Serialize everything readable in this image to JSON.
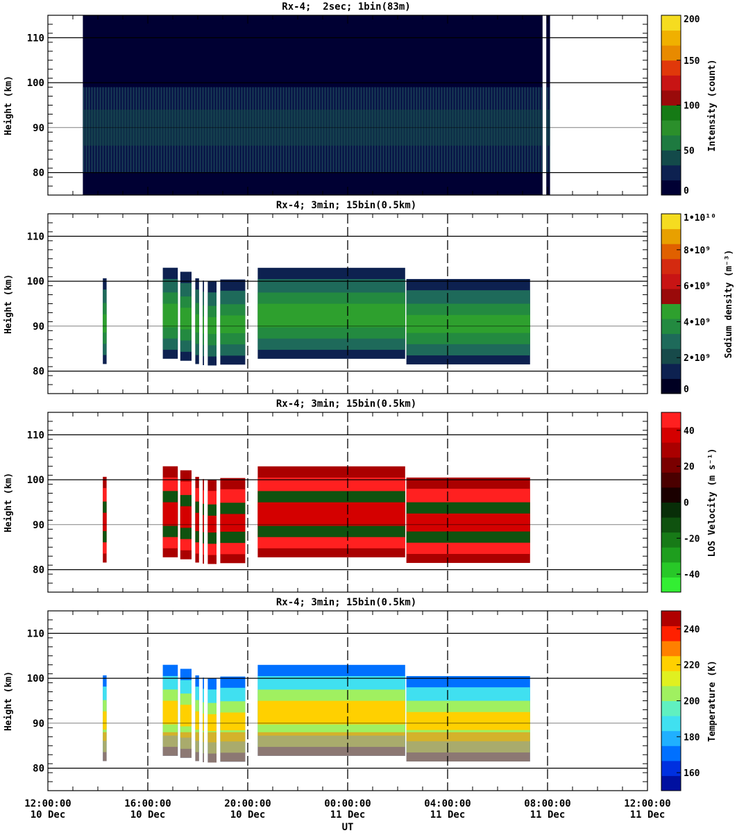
{
  "figure": {
    "x_axis_label": "UT",
    "x_tick_labels": [
      {
        "time": "12:00:00",
        "date": "10 Dec"
      },
      {
        "time": "16:00:00",
        "date": "10 Dec"
      },
      {
        "time": "20:00:00",
        "date": "10 Dec"
      },
      {
        "time": "00:00:00",
        "date": "11 Dec"
      },
      {
        "time": "04:00:00",
        "date": "11 Dec"
      },
      {
        "time": "08:00:00",
        "date": "11 Dec"
      },
      {
        "time": "12:00:00",
        "date": "11 Dec"
      }
    ]
  },
  "chart_data": [
    {
      "type": "heatmap",
      "title": "Rx-4;  2sec; 1bin(83m)",
      "ylabel": "Height (km)",
      "xlabel": "UT",
      "x_range_hours": [
        0,
        24
      ],
      "ylim": [
        75,
        115
      ],
      "y_ticks": [
        80,
        90,
        100,
        110
      ],
      "colorbar": {
        "label": "Intensity (count)",
        "range": [
          0,
          200
        ],
        "tick_labels": [
          "0",
          "50",
          "100",
          "150",
          "200"
        ],
        "tick_values": [
          0,
          50,
          100,
          150,
          200
        ],
        "colors": [
          "#000033",
          "#0d2150",
          "#134a4a",
          "#1e7a40",
          "#2b8f2b",
          "#157a15",
          "#9a0a0a",
          "#c81414",
          "#e0380a",
          "#e88a00",
          "#f0b000",
          "#f5dc20"
        ]
      },
      "data_coverage_hours": [
        [
          1.4,
          19.8
        ],
        [
          19.95,
          20.1
        ]
      ],
      "layer_peak_km": 90
    },
    {
      "type": "heatmap",
      "title": "Rx-4; 3min; 15bin(0.5km)",
      "ylabel": "Height (km)",
      "xlabel": "UT",
      "x_range_hours": [
        0,
        24
      ],
      "ylim": [
        75,
        115
      ],
      "y_ticks": [
        80,
        90,
        100,
        110
      ],
      "colorbar": {
        "label": "Sodium density (m⁻³)",
        "range": [
          0,
          10000000000
        ],
        "tick_labels": [
          "0",
          "2•10⁹",
          "4•10⁹",
          "6•10⁹",
          "8•10⁹",
          "1•10¹⁰"
        ],
        "tick_values": [
          0,
          2000000000,
          4000000000,
          6000000000,
          8000000000,
          10000000000
        ],
        "colors": [
          "#000022",
          "#0d2150",
          "#174a4a",
          "#1e6a5a",
          "#238a40",
          "#2ea02e",
          "#9a0a0a",
          "#c81414",
          "#d42a10",
          "#e06000",
          "#e8a000",
          "#f5dc20"
        ]
      },
      "data_coverage_hours": [
        [
          2.2,
          2.35
        ],
        [
          4.6,
          5.2
        ],
        [
          5.3,
          5.75
        ],
        [
          5.9,
          6.05
        ],
        [
          6.2,
          6.25
        ],
        [
          6.4,
          6.75
        ],
        [
          6.9,
          7.9
        ],
        [
          8.4,
          14.3
        ],
        [
          14.35,
          19.3
        ]
      ],
      "layer_peak_km": 91
    },
    {
      "type": "heatmap",
      "title": "Rx-4; 3min; 15bin(0.5km)",
      "ylabel": "Height (km)",
      "xlabel": "UT",
      "x_range_hours": [
        0,
        24
      ],
      "ylim": [
        75,
        115
      ],
      "y_ticks": [
        80,
        90,
        100,
        110
      ],
      "colorbar": {
        "label": "LOS Velocity (m s⁻¹)",
        "range": [
          -50,
          50
        ],
        "tick_labels": [
          "-40",
          "-20",
          "0",
          "20",
          "40"
        ],
        "tick_values": [
          -40,
          -20,
          0,
          20,
          40
        ],
        "colors": [
          "#33ee33",
          "#28c828",
          "#1e9e1e",
          "#177a17",
          "#0f520f",
          "#082e08",
          "#1a0000",
          "#4a0000",
          "#7a0000",
          "#aa0000",
          "#d40000",
          "#ff2020"
        ]
      },
      "data_coverage_hours": [
        [
          2.2,
          2.35
        ],
        [
          4.6,
          5.2
        ],
        [
          5.3,
          5.75
        ],
        [
          5.9,
          6.05
        ],
        [
          6.2,
          6.25
        ],
        [
          6.4,
          6.75
        ],
        [
          6.9,
          7.9
        ],
        [
          8.4,
          14.3
        ],
        [
          14.35,
          19.3
        ]
      ],
      "layer_peak_km": 91
    },
    {
      "type": "heatmap",
      "title": "Rx-4; 3min; 15bin(0.5km)",
      "ylabel": "Height (km)",
      "xlabel": "UT",
      "x_range_hours": [
        0,
        24
      ],
      "ylim": [
        75,
        115
      ],
      "y_ticks": [
        80,
        90,
        100,
        110
      ],
      "colorbar": {
        "label": "Temperature (K)",
        "range": [
          150,
          250
        ],
        "tick_labels": [
          "160",
          "180",
          "200",
          "220",
          "240"
        ],
        "tick_values": [
          160,
          180,
          200,
          220,
          240
        ],
        "colors": [
          "#0010a0",
          "#0030e0",
          "#0070ff",
          "#20b0ff",
          "#40e0f0",
          "#60f0c0",
          "#a0f060",
          "#e0f020",
          "#ffd000",
          "#ff8000",
          "#ff2000",
          "#b00000"
        ]
      },
      "data_coverage_hours": [
        [
          2.2,
          2.35
        ],
        [
          4.6,
          5.2
        ],
        [
          5.3,
          5.75
        ],
        [
          5.9,
          6.05
        ],
        [
          6.2,
          6.25
        ],
        [
          6.4,
          6.75
        ],
        [
          6.9,
          7.9
        ],
        [
          8.4,
          14.3
        ],
        [
          14.35,
          19.3
        ]
      ],
      "layer_peak_km": 91
    }
  ]
}
